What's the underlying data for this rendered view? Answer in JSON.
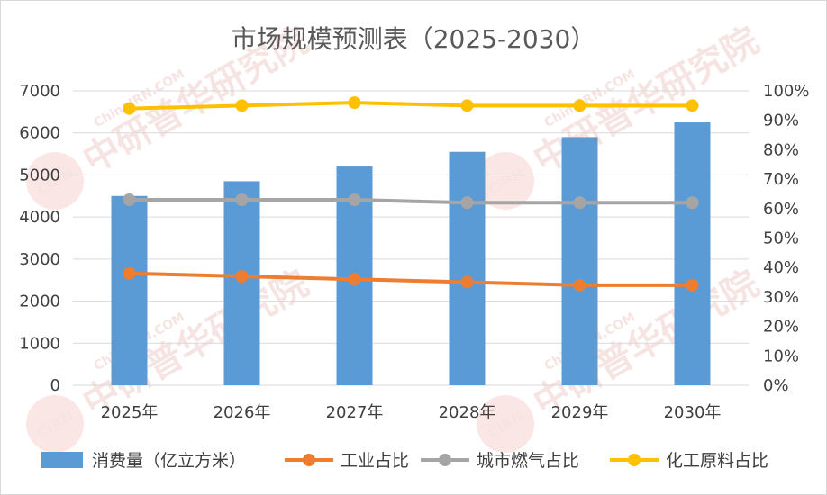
{
  "chart_data": {
    "type": "bar",
    "title": "市场规模预测表（2025-2030）",
    "categories": [
      "2025年",
      "2026年",
      "2027年",
      "2028年",
      "2029年",
      "2030年"
    ],
    "series": [
      {
        "name": "消费量（亿立方米）",
        "type": "bar",
        "axis": "left",
        "color": "#5b9bd5",
        "values": [
          4500,
          4850,
          5200,
          5550,
          5900,
          6250
        ]
      },
      {
        "name": "工业占比",
        "type": "line",
        "axis": "right",
        "color": "#ed7d31",
        "values": [
          0.38,
          0.37,
          0.36,
          0.35,
          0.34,
          0.34
        ]
      },
      {
        "name": "城市燃气占比",
        "type": "line",
        "axis": "right",
        "color": "#a5a5a5",
        "values": [
          0.63,
          0.63,
          0.63,
          0.62,
          0.62,
          0.62
        ]
      },
      {
        "name": "化工原料占比",
        "type": "line",
        "axis": "right",
        "color": "#ffc000",
        "values": [
          0.94,
          0.95,
          0.96,
          0.95,
          0.95,
          0.95
        ]
      }
    ],
    "y_left": {
      "min": 0,
      "max": 7000,
      "step": 1000,
      "ticks": [
        "0",
        "1000",
        "2000",
        "3000",
        "4000",
        "5000",
        "6000",
        "7000"
      ]
    },
    "y_right": {
      "min": 0,
      "max": 1,
      "step": 0.1,
      "ticks": [
        "0%",
        "10%",
        "20%",
        "30%",
        "40%",
        "50%",
        "60%",
        "70%",
        "80%",
        "90%",
        "100%"
      ]
    },
    "grid": true,
    "legend": "bottom"
  },
  "watermark": {
    "logo_text": "CIRN",
    "brand_cn": "中研普华研究院",
    "brand_url": "ChinaIRN.COM"
  }
}
